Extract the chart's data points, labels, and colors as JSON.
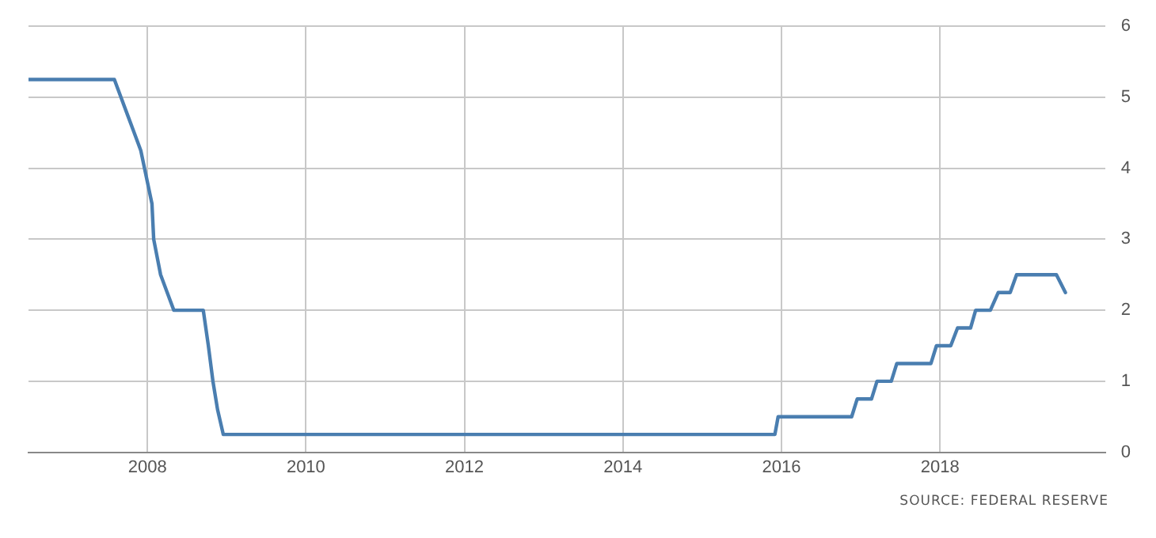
{
  "chart_data": {
    "type": "line",
    "x": [
      "2006-07",
      "2007-08",
      "2007-09",
      "2007-10",
      "2007-11",
      "2007-12",
      "2008-01-22",
      "2008-01-30",
      "2008-03",
      "2008-04",
      "2008-05",
      "2008-09-15",
      "2008-10-08",
      "2008-10-29",
      "2008-11-20",
      "2008-12-16",
      "2015-12-01",
      "2015-12-16",
      "2016-11-20",
      "2016-12-15",
      "2017-02-20",
      "2017-03-15",
      "2017-05-20",
      "2017-06-15",
      "2017-11-20",
      "2017-12-15",
      "2018-02-20",
      "2018-03-21",
      "2018-05-20",
      "2018-06-13",
      "2018-08-20",
      "2018-09-26",
      "2018-11-20",
      "2018-12-19",
      "2019-06-20",
      "2019-07-31"
    ],
    "series": [
      {
        "color": "#4a7eb0",
        "values": [
          5.25,
          5.25,
          5.0,
          4.75,
          4.5,
          4.25,
          3.5,
          3.0,
          2.5,
          2.25,
          2.0,
          2.0,
          1.5,
          1.0,
          0.6,
          0.25,
          0.25,
          0.5,
          0.5,
          0.75,
          0.75,
          1.0,
          1.0,
          1.25,
          1.25,
          1.5,
          1.5,
          1.75,
          1.75,
          2.0,
          2.0,
          2.25,
          2.25,
          2.5,
          2.5,
          2.25
        ]
      }
    ],
    "xlim": [
      "2006-07",
      "2020-02"
    ],
    "xticks": [
      "2008",
      "2010",
      "2012",
      "2014",
      "2016",
      "2018"
    ],
    "ylim": [
      0,
      6
    ],
    "yticks": [
      0,
      1,
      2,
      3,
      4,
      5,
      6
    ],
    "grid": true,
    "marker": "none",
    "line_style": "solid",
    "annotations": [
      "SOURCE: FEDERAL RESERVE"
    ]
  }
}
